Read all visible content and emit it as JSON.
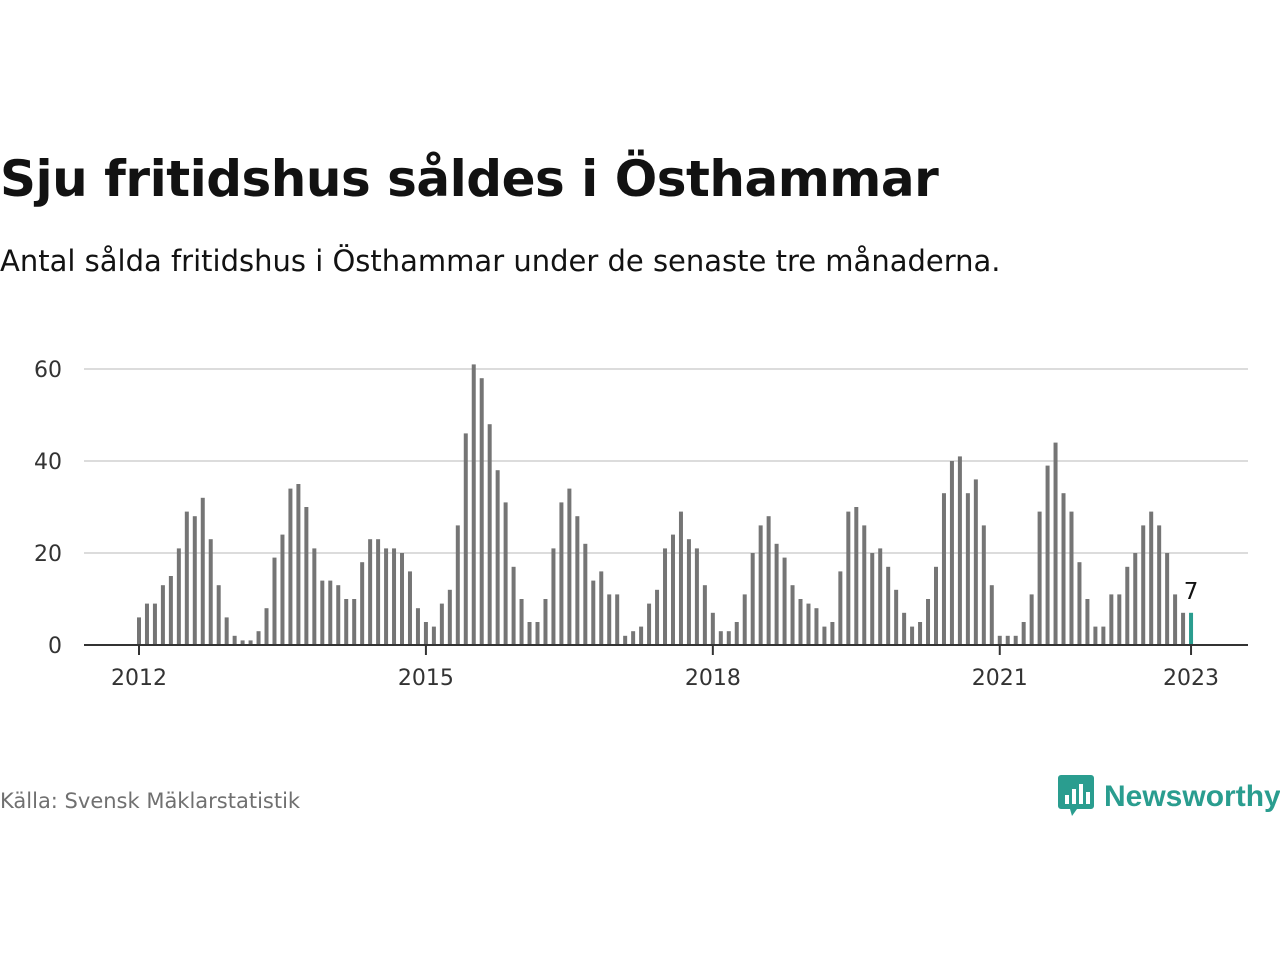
{
  "title": "Sju fritidshus såldes i Östhammar",
  "subtitle": "Antal sålda fritidshus i Östhammar under de senaste tre månaderna.",
  "source": "Källa: Svensk Mäklarstatistik",
  "brand": {
    "name": "Newsworthy",
    "icon": "newsworthy-logo-icon"
  },
  "colors": {
    "bar": "#757575",
    "highlight": "#2a9d8f",
    "grid": "#dcdcdc",
    "axis": "#333333"
  },
  "chart_data": {
    "type": "bar",
    "start": "2012-01",
    "interval": "month",
    "x_ticks": [
      "2012",
      "2015",
      "2018",
      "2021",
      "2023"
    ],
    "y_ticks": [
      0,
      20,
      40,
      60
    ],
    "ylim": [
      0,
      60
    ],
    "grid": true,
    "highlight_last": true,
    "last_label": "7",
    "values": [
      6,
      9,
      9,
      13,
      15,
      21,
      29,
      28,
      32,
      23,
      13,
      6,
      2,
      1,
      1,
      3,
      8,
      19,
      24,
      34,
      35,
      30,
      21,
      14,
      14,
      13,
      10,
      10,
      18,
      23,
      23,
      21,
      21,
      20,
      16,
      8,
      5,
      4,
      9,
      12,
      26,
      46,
      61,
      58,
      48,
      38,
      31,
      17,
      10,
      5,
      5,
      10,
      21,
      31,
      34,
      28,
      22,
      14,
      16,
      11,
      11,
      2,
      3,
      4,
      9,
      12,
      21,
      24,
      29,
      23,
      21,
      13,
      7,
      3,
      3,
      5,
      11,
      20,
      26,
      28,
      22,
      19,
      13,
      10,
      9,
      8,
      4,
      5,
      16,
      29,
      30,
      26,
      20,
      21,
      17,
      12,
      7,
      4,
      5,
      10,
      17,
      33,
      40,
      41,
      33,
      36,
      26,
      13,
      2,
      2,
      2,
      5,
      11,
      29,
      39,
      44,
      33,
      29,
      18,
      10,
      4,
      4,
      11,
      11,
      17,
      20,
      26,
      29,
      26,
      20,
      11,
      7,
      7
    ]
  }
}
